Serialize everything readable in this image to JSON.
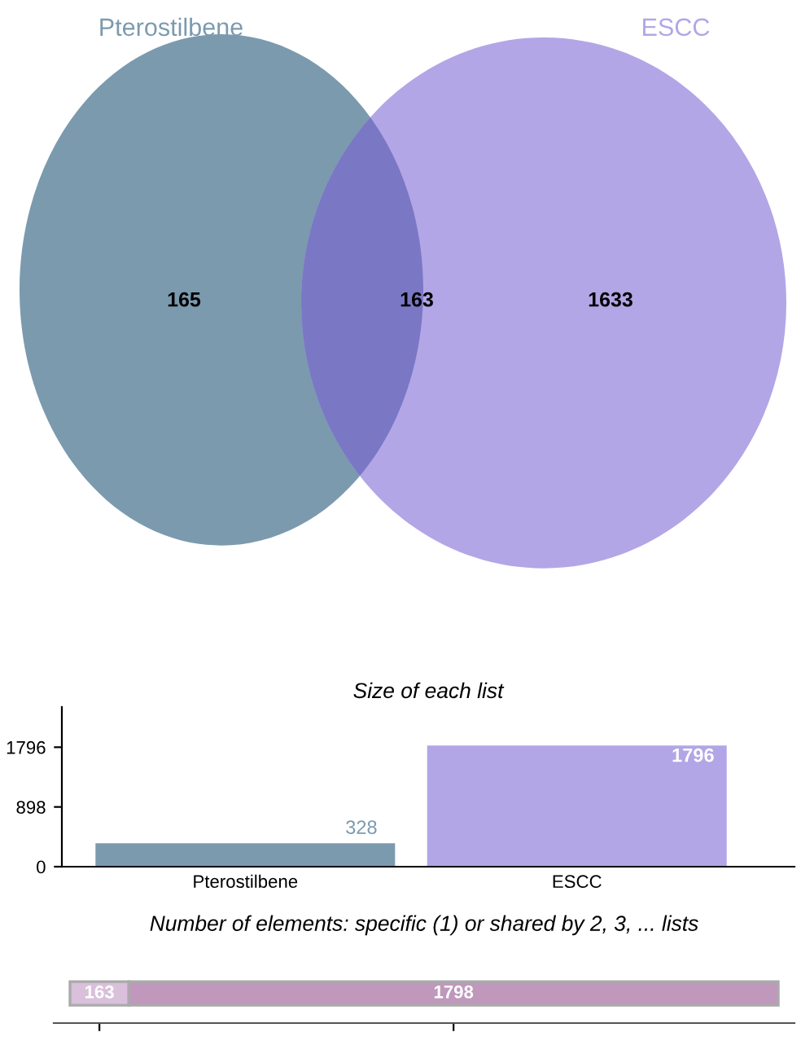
{
  "chart_data": [
    {
      "type": "other",
      "categories": [
        null,
        null,
        null
      ],
      "values": [
        165,
        163,
        1633
      ],
      "data_labels": true,
      "colors": [
        "#7b9aae",
        "#7a78c4",
        "#b3a6e6"
      ],
      "annotations": [
        "Pterostilbene",
        "ESCC"
      ]
    },
    {
      "type": "bar",
      "title": "Size of each list",
      "categories": [
        "Pterostilbene",
        "ESCC"
      ],
      "values": [
        328,
        1796
      ],
      "colors": [
        "#7b9aae",
        "#b3a6e6"
      ],
      "ylim": [
        0,
        2400
      ],
      "yticks": [
        0,
        898,
        1796
      ],
      "data_labels": true,
      "grid": false
    },
    {
      "type": "bar",
      "title": "Number of elements: specific (1) or shared by 2, 3, ... lists",
      "orientation": "horizontal",
      "stacked": true,
      "categories": [
        null
      ],
      "series": [
        {
          "color": "#d9c0db",
          "values": [
            163
          ]
        },
        {
          "color": "#bf98bc",
          "values": [
            1798
          ]
        }
      ],
      "xlim": [
        -45,
        2006
      ],
      "xticks": [
        {
          "value": 81.5,
          "label": null
        },
        {
          "value": 1062,
          "label": null
        }
      ],
      "data_labels": true,
      "grid": false
    }
  ]
}
